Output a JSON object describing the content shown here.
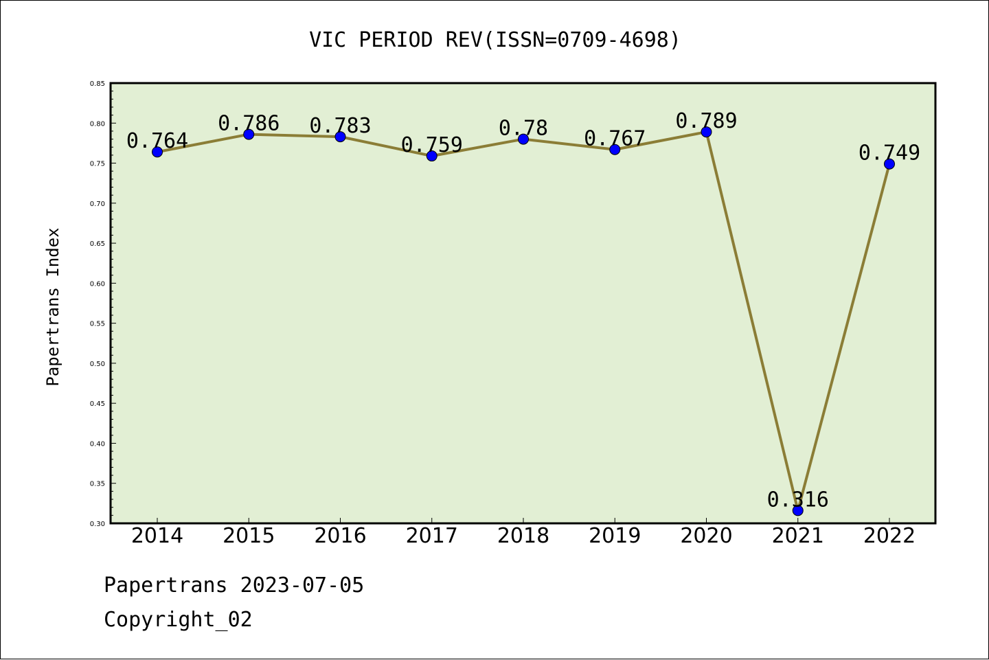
{
  "chart_data": {
    "type": "line",
    "title": "VIC PERIOD REV(ISSN=0709-4698)",
    "ylabel": "Papertrans Index",
    "xlabel": "",
    "categories": [
      "2014",
      "2015",
      "2016",
      "2017",
      "2018",
      "2019",
      "2020",
      "2021",
      "2022"
    ],
    "values": [
      0.764,
      0.786,
      0.783,
      0.759,
      0.78,
      0.767,
      0.789,
      0.316,
      0.749
    ],
    "data_labels": [
      "0.764",
      "0.786",
      "0.783",
      "0.759",
      "0.78",
      "0.767",
      "0.789",
      "0.316",
      "0.749"
    ],
    "ylim": [
      0.3,
      0.85
    ],
    "yticks": [
      "0.30",
      "0.35",
      "0.40",
      "0.45",
      "0.50",
      "0.55",
      "0.60",
      "0.65",
      "0.70",
      "0.75",
      "0.80",
      "0.85"
    ],
    "grid": false,
    "colors": {
      "plot_background": "#e2efd4",
      "line": "#8b7d36",
      "marker": "#0000ff"
    }
  },
  "footer": {
    "line1": "Papertrans 2023-07-05",
    "line2": "Copyright_02"
  }
}
